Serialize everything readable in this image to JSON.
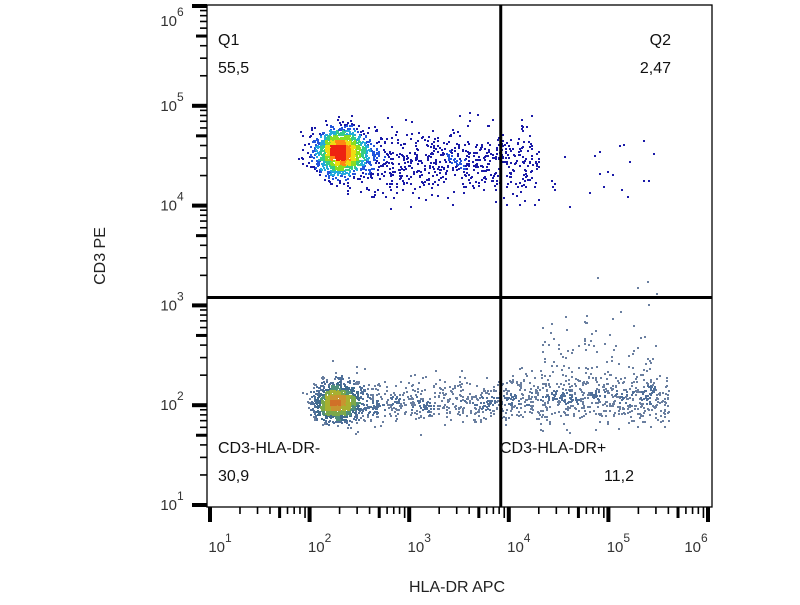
{
  "chart_data": {
    "type": "scatter",
    "subtype": "flow-cytometry-pseudocolor-dotplot",
    "xlabel": "HLA-DR APC",
    "ylabel": "CD3 PE",
    "xscale": "log",
    "yscale": "log",
    "xlim": [
      10,
      1000000
    ],
    "ylim": [
      10,
      1000000
    ],
    "x_ticks": [
      {
        "base": "10",
        "exp": "1",
        "value": 10
      },
      {
        "base": "10",
        "exp": "2",
        "value": 100
      },
      {
        "base": "10",
        "exp": "3",
        "value": 1000
      },
      {
        "base": "10",
        "exp": "4",
        "value": 10000
      },
      {
        "base": "10",
        "exp": "5",
        "value": 100000
      },
      {
        "base": "10",
        "exp": "6",
        "value": 1000000
      }
    ],
    "y_ticks": [
      {
        "base": "10",
        "exp": "1",
        "value": 10
      },
      {
        "base": "10",
        "exp": "2",
        "value": 100
      },
      {
        "base": "10",
        "exp": "3",
        "value": 1000
      },
      {
        "base": "10",
        "exp": "4",
        "value": 10000
      },
      {
        "base": "10",
        "exp": "5",
        "value": 100000
      },
      {
        "base": "10",
        "exp": "6",
        "value": 1000000
      }
    ],
    "quadrant_gate": {
      "x": 8300,
      "y": 1200
    },
    "quadrants": [
      {
        "name": "Q1",
        "value": "55,5",
        "position": "top-left"
      },
      {
        "name": "Q2",
        "value": "2,47",
        "position": "top-right"
      },
      {
        "name": "CD3-HLA-DR-",
        "value": "30,9",
        "position": "bottom-left"
      },
      {
        "name": "CD3-HLA-DR+",
        "value": "11,2",
        "position": "bottom-right"
      }
    ],
    "populations": [
      {
        "label": "CD3+ HLA-DR-",
        "x_center": 200,
        "y_center": 35000,
        "x_spread_decades": 0.13,
        "y_spread_decades": 0.12,
        "count": 1500,
        "palette": "jet"
      },
      {
        "label": "CD3+ HLA-DR- tail",
        "x_from": 300,
        "x_to": 20000,
        "y_center": 28000,
        "y_spread_decades": 0.17,
        "count": 650,
        "palette": "jet"
      },
      {
        "label": "CD3+ HLA-DR+ sparse",
        "x_from": 10000,
        "x_to": 300000,
        "y_center": 25000,
        "y_spread_decades": 0.2,
        "count": 25,
        "palette": "jet"
      },
      {
        "label": "CD3- HLA-DR-",
        "x_center": 190,
        "y_center": 110,
        "x_spread_decades": 0.12,
        "y_spread_decades": 0.1,
        "count": 1000,
        "palette": "muted"
      },
      {
        "label": "CD3- HLA-DR- tail",
        "x_from": 100,
        "x_to": 8000,
        "y_center": 110,
        "y_spread_decades": 0.1,
        "count": 550,
        "palette": "muted"
      },
      {
        "label": "CD3- HLA-DR+",
        "x_from": 8000,
        "x_to": 400000,
        "y_center": 120,
        "y_spread_decades": 0.13,
        "count": 650,
        "palette": "muted"
      },
      {
        "label": "CD3- HLA-DR+ upper",
        "x_from": 20000,
        "x_to": 300000,
        "y_center": 350,
        "y_spread_decades": 0.25,
        "count": 80,
        "palette": "muted"
      }
    ],
    "colors": {
      "jet": [
        "#1a1aa8",
        "#2255dd",
        "#22aadd",
        "#33cc88",
        "#88dd22",
        "#eedd11",
        "#ff8811",
        "#ee2211"
      ],
      "muted": [
        "#6a7fa0",
        "#50709a",
        "#3f6a8e",
        "#4f8f7a",
        "#7aa84a",
        "#a8b030",
        "#c89430",
        "#d07028"
      ],
      "axis": "#000000",
      "tick_label": "#333333"
    }
  }
}
